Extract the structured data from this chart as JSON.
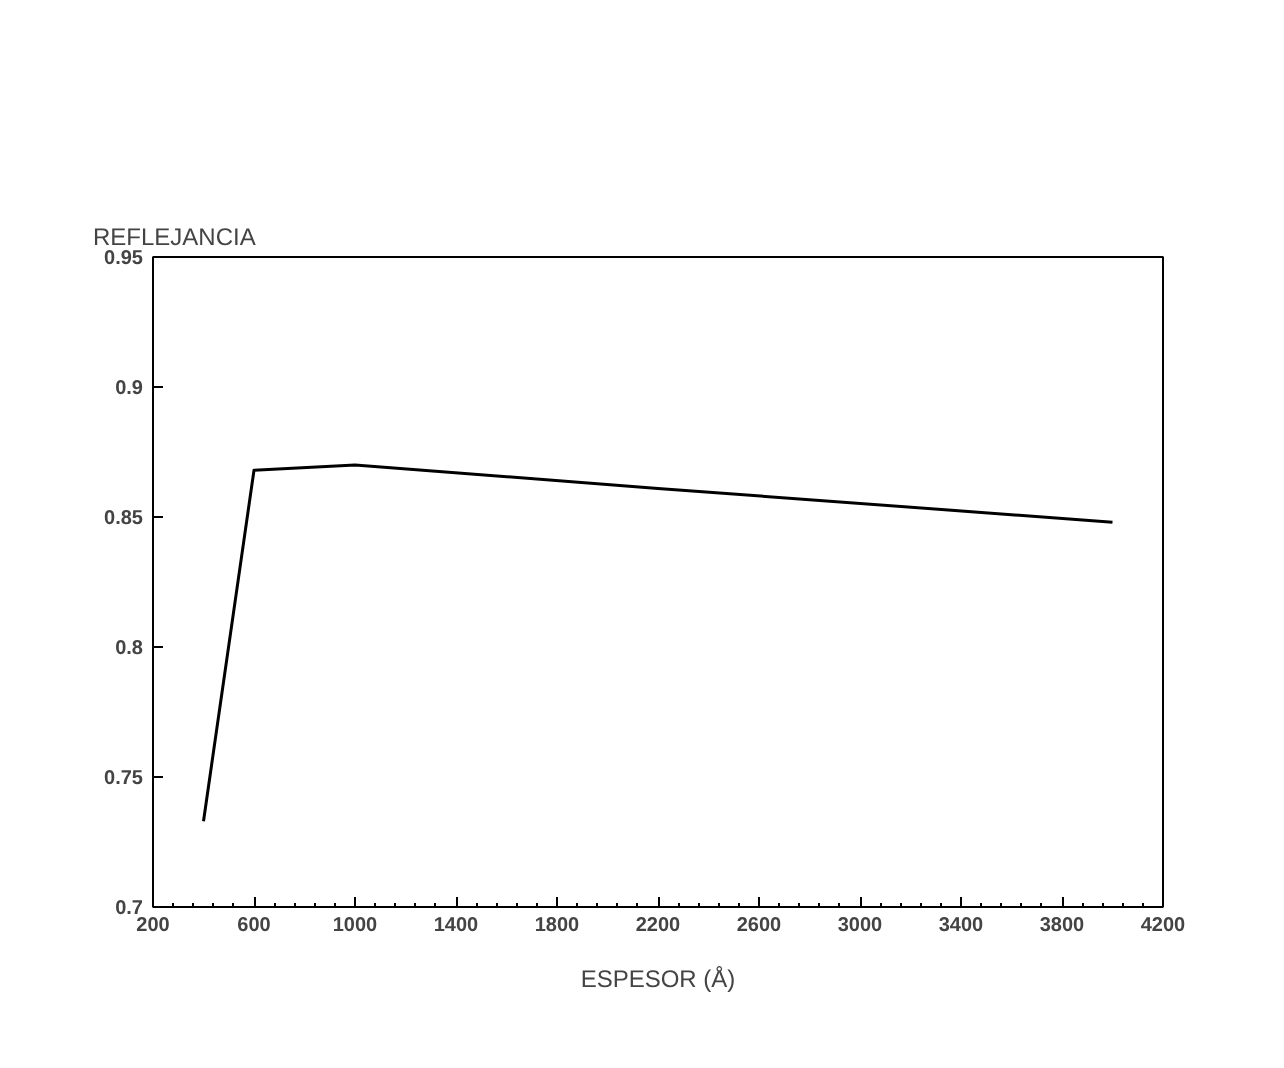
{
  "chart_data": {
    "type": "line",
    "ylabel": "REFLEJANCIA",
    "xlabel": "ESPESOR (Å)",
    "x": [
      400,
      600,
      1000,
      2200,
      4000
    ],
    "series": [
      {
        "color": "#000000",
        "values": [
          0.733,
          0.868,
          0.87,
          0.861,
          0.848
        ]
      }
    ],
    "xlim": [
      200,
      4200
    ],
    "xticks": [
      200,
      600,
      1000,
      1400,
      1800,
      2200,
      2600,
      3000,
      3400,
      3800,
      4200
    ],
    "ylim": [
      0.7,
      0.95
    ],
    "yticks": [
      {
        "value": 0.7,
        "label": "0.7"
      },
      {
        "value": 0.75,
        "label": "0.75"
      },
      {
        "value": 0.8,
        "label": "0.8"
      },
      {
        "value": 0.85,
        "label": "0.85"
      },
      {
        "value": 0.9,
        "label": "0.9"
      },
      {
        "value": 0.95,
        "label": "0.95"
      }
    ],
    "grid": false,
    "marker": "none",
    "line_style": "solid"
  }
}
